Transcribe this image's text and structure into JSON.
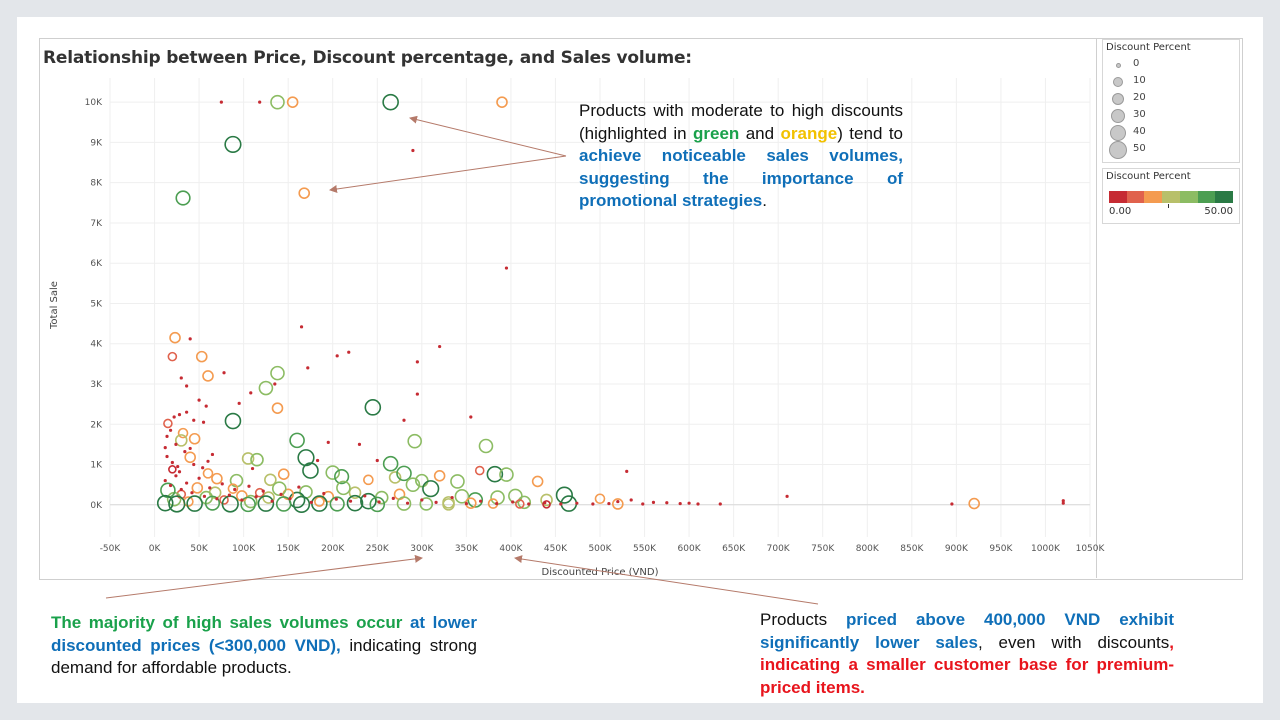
{
  "chart_title": "Relationship between Price, Discount percentage, and Sales volume:",
  "chart_data": {
    "type": "scatter",
    "title": "Relationship between Price, Discount percentage, and Sales volume:",
    "xlabel": "Discounted Price (VND)",
    "ylabel": "Total Sale",
    "xlim": [
      -50000,
      1050000
    ],
    "ylim": [
      -800,
      10600
    ],
    "x_ticks": [
      -50000,
      0,
      50000,
      100000,
      150000,
      200000,
      250000,
      300000,
      350000,
      400000,
      450000,
      500000,
      550000,
      600000,
      650000,
      700000,
      750000,
      800000,
      850000,
      900000,
      950000,
      1000000,
      1050000
    ],
    "x_tick_labels": [
      "-50K",
      "0K",
      "50K",
      "100K",
      "150K",
      "200K",
      "250K",
      "300K",
      "350K",
      "400K",
      "450K",
      "500K",
      "550K",
      "600K",
      "650K",
      "700K",
      "750K",
      "800K",
      "850K",
      "900K",
      "950K",
      "1000K",
      "1050K"
    ],
    "y_ticks": [
      0,
      1000,
      2000,
      3000,
      4000,
      5000,
      6000,
      7000,
      8000,
      9000,
      10000
    ],
    "y_tick_labels": [
      "0K",
      "1K",
      "2K",
      "3K",
      "4K",
      "5K",
      "6K",
      "7K",
      "8K",
      "9K",
      "10K"
    ],
    "size_field": "Discount Percent",
    "color_field": "Discount Percent",
    "points": [
      [
        75000,
        10000,
        0
      ],
      [
        118000,
        10000,
        2
      ],
      [
        155000,
        10000,
        20
      ],
      [
        138000,
        10000,
        35
      ],
      [
        265000,
        10000,
        45
      ],
      [
        390000,
        10000,
        20
      ],
      [
        88000,
        8950,
        48
      ],
      [
        32000,
        7620,
        38
      ],
      [
        168000,
        7740,
        20
      ],
      [
        290000,
        8800,
        2
      ],
      [
        395000,
        5880,
        2
      ],
      [
        23000,
        4150,
        20
      ],
      [
        40000,
        4120,
        2
      ],
      [
        20000,
        3680,
        10
      ],
      [
        53000,
        3680,
        20
      ],
      [
        60000,
        3200,
        20
      ],
      [
        78000,
        3280,
        2
      ],
      [
        138000,
        3270,
        35
      ],
      [
        125000,
        2900,
        35
      ],
      [
        165000,
        4420,
        2
      ],
      [
        205000,
        3700,
        2
      ],
      [
        218000,
        3790,
        2
      ],
      [
        295000,
        3550,
        2
      ],
      [
        320000,
        3930,
        2
      ],
      [
        295000,
        2750,
        2
      ],
      [
        30000,
        3150,
        2
      ],
      [
        95000,
        2520,
        2
      ],
      [
        108000,
        2780,
        2
      ],
      [
        245000,
        2420,
        45
      ],
      [
        138000,
        2400,
        20
      ],
      [
        88000,
        2080,
        45
      ],
      [
        15000,
        2020,
        10
      ],
      [
        45000,
        1640,
        20
      ],
      [
        32000,
        1780,
        15
      ],
      [
        30000,
        1600,
        25
      ],
      [
        12000,
        1420,
        2
      ],
      [
        160000,
        1600,
        40
      ],
      [
        170000,
        1170,
        48
      ],
      [
        292000,
        1580,
        35
      ],
      [
        372000,
        1460,
        35
      ],
      [
        355000,
        2180,
        2
      ],
      [
        40000,
        1180,
        20
      ],
      [
        105000,
        1150,
        25
      ],
      [
        115000,
        1120,
        30
      ],
      [
        183000,
        1100,
        2
      ],
      [
        265000,
        1020,
        40
      ],
      [
        20000,
        880,
        5
      ],
      [
        28000,
        820,
        2
      ],
      [
        60000,
        780,
        15
      ],
      [
        70000,
        650,
        20
      ],
      [
        92000,
        600,
        30
      ],
      [
        130000,
        620,
        25
      ],
      [
        145000,
        760,
        20
      ],
      [
        175000,
        850,
        45
      ],
      [
        200000,
        800,
        35
      ],
      [
        210000,
        700,
        38
      ],
      [
        240000,
        620,
        15
      ],
      [
        270000,
        680,
        25
      ],
      [
        280000,
        780,
        40
      ],
      [
        300000,
        600,
        30
      ],
      [
        320000,
        720,
        20
      ],
      [
        340000,
        580,
        35
      ],
      [
        365000,
        850,
        10
      ],
      [
        382000,
        760,
        45
      ],
      [
        395000,
        750,
        35
      ],
      [
        430000,
        580,
        20
      ],
      [
        405000,
        220,
        35
      ],
      [
        460000,
        240,
        48
      ],
      [
        500000,
        150,
        15
      ],
      [
        530000,
        830,
        2
      ],
      [
        560000,
        60,
        2
      ],
      [
        575000,
        50,
        2
      ],
      [
        590000,
        30,
        2
      ],
      [
        610000,
        20,
        2
      ],
      [
        635000,
        20,
        2
      ],
      [
        710000,
        210,
        2
      ],
      [
        895000,
        20,
        2
      ],
      [
        920000,
        30,
        20
      ],
      [
        1020000,
        100,
        2
      ],
      [
        1020000,
        40,
        2
      ],
      [
        520000,
        80,
        2
      ],
      [
        535000,
        120,
        2
      ],
      [
        548000,
        20,
        2
      ],
      [
        600000,
        40,
        2
      ],
      [
        520000,
        20,
        20
      ],
      [
        465000,
        30,
        45
      ],
      [
        440000,
        120,
        25
      ],
      [
        415000,
        60,
        30
      ],
      [
        385000,
        180,
        35
      ],
      [
        360000,
        120,
        40
      ],
      [
        345000,
        210,
        35
      ],
      [
        330000,
        60,
        25
      ],
      [
        310000,
        400,
        48
      ],
      [
        290000,
        500,
        35
      ],
      [
        275000,
        260,
        20
      ],
      [
        255000,
        180,
        30
      ],
      [
        240000,
        90,
        45
      ],
      [
        225000,
        300,
        25
      ],
      [
        212000,
        420,
        35
      ],
      [
        195000,
        200,
        20
      ],
      [
        185000,
        80,
        15
      ],
      [
        170000,
        320,
        30
      ],
      [
        160000,
        120,
        45
      ],
      [
        150000,
        260,
        20
      ],
      [
        140000,
        400,
        35
      ],
      [
        128000,
        180,
        25
      ],
      [
        118000,
        300,
        10
      ],
      [
        108000,
        80,
        30
      ],
      [
        98000,
        220,
        20
      ],
      [
        88000,
        400,
        15
      ],
      [
        78000,
        120,
        10
      ],
      [
        68000,
        300,
        25
      ],
      [
        58000,
        180,
        30
      ],
      [
        48000,
        420,
        20
      ],
      [
        38000,
        80,
        15
      ],
      [
        30000,
        260,
        10
      ],
      [
        22000,
        140,
        35
      ],
      [
        15000,
        360,
        40
      ],
      [
        12000,
        40,
        45
      ],
      [
        25000,
        20,
        48
      ],
      [
        45000,
        30,
        45
      ],
      [
        65000,
        40,
        38
      ],
      [
        85000,
        20,
        48
      ],
      [
        105000,
        10,
        40
      ],
      [
        125000,
        30,
        45
      ],
      [
        145000,
        20,
        40
      ],
      [
        165000,
        10,
        48
      ],
      [
        185000,
        30,
        45
      ],
      [
        205000,
        20,
        38
      ],
      [
        225000,
        40,
        45
      ],
      [
        250000,
        10,
        40
      ],
      [
        280000,
        30,
        35
      ],
      [
        305000,
        20,
        30
      ],
      [
        330000,
        10,
        25
      ],
      [
        355000,
        40,
        20
      ],
      [
        380000,
        30,
        15
      ],
      [
        410000,
        20,
        10
      ],
      [
        440000,
        10,
        5
      ],
      [
        12000,
        600,
        2
      ],
      [
        18000,
        480,
        2
      ],
      [
        24000,
        720,
        2
      ],
      [
        30000,
        380,
        2
      ],
      [
        36000,
        540,
        2
      ],
      [
        42000,
        300,
        2
      ],
      [
        50000,
        660,
        2
      ],
      [
        56000,
        210,
        2
      ],
      [
        62000,
        420,
        2
      ],
      [
        70000,
        150,
        2
      ],
      [
        76000,
        520,
        2
      ],
      [
        84000,
        240,
        2
      ],
      [
        90000,
        380,
        2
      ],
      [
        98000,
        120,
        2
      ],
      [
        106000,
        460,
        2
      ],
      [
        114000,
        200,
        2
      ],
      [
        122000,
        340,
        2
      ],
      [
        132000,
        90,
        2
      ],
      [
        142000,
        260,
        2
      ],
      [
        152000,
        150,
        2
      ],
      [
        162000,
        440,
        2
      ],
      [
        176000,
        60,
        2
      ],
      [
        190000,
        280,
        2
      ],
      [
        204000,
        140,
        2
      ],
      [
        220000,
        90,
        2
      ],
      [
        236000,
        220,
        2
      ],
      [
        252000,
        70,
        2
      ],
      [
        268000,
        160,
        2
      ],
      [
        284000,
        40,
        2
      ],
      [
        300000,
        120,
        2
      ],
      [
        316000,
        60,
        2
      ],
      [
        334000,
        180,
        2
      ],
      [
        350000,
        30,
        2
      ],
      [
        366000,
        90,
        2
      ],
      [
        384000,
        30,
        2
      ],
      [
        402000,
        70,
        2
      ],
      [
        420000,
        20,
        2
      ],
      [
        438000,
        50,
        2
      ],
      [
        456000,
        20,
        2
      ],
      [
        474000,
        40,
        2
      ],
      [
        492000,
        20,
        2
      ],
      [
        510000,
        30,
        2
      ],
      [
        14000,
        1200,
        2
      ],
      [
        20000,
        1050,
        2
      ],
      [
        26000,
        950,
        2
      ],
      [
        34000,
        1320,
        2
      ],
      [
        44000,
        1000,
        2
      ],
      [
        54000,
        920,
        2
      ],
      [
        22000,
        2180,
        2
      ],
      [
        28000,
        2240,
        2
      ],
      [
        36000,
        2300,
        2
      ],
      [
        44000,
        2100,
        2
      ],
      [
        55000,
        2050,
        2
      ],
      [
        58000,
        2450,
        2
      ],
      [
        50000,
        2600,
        2
      ],
      [
        36000,
        2950,
        2
      ],
      [
        40000,
        1400,
        2
      ],
      [
        65000,
        1250,
        2
      ],
      [
        14000,
        1700,
        2
      ],
      [
        18000,
        1850,
        2
      ],
      [
        24000,
        1500,
        2
      ],
      [
        135000,
        3000,
        2
      ],
      [
        172000,
        3400,
        2
      ],
      [
        280000,
        2100,
        2
      ],
      [
        250000,
        1100,
        2
      ],
      [
        230000,
        1500,
        2
      ],
      [
        195000,
        1550,
        2
      ],
      [
        110000,
        900,
        2
      ],
      [
        60000,
        1080,
        2
      ]
    ],
    "colors": [
      "#c62b33",
      "#e0624d",
      "#f49b50",
      "#b8c06a",
      "#8cbc63",
      "#4c9e52",
      "#2a7a45"
    ]
  },
  "size_legend": {
    "title": "Discount Percent",
    "entries": [
      "0",
      "10",
      "20",
      "30",
      "40",
      "50"
    ]
  },
  "color_legend": {
    "title": "Discount Percent",
    "min_label": "0.00",
    "max_label": "50.00",
    "colors": [
      "#c62b33",
      "#e0624d",
      "#f49b50",
      "#b8c06a",
      "#8cbc63",
      "#4c9e52",
      "#2a7a45"
    ]
  },
  "annotations": {
    "top": {
      "p1": "Products with moderate to high discounts (",
      "p2": "highlighted in ",
      "green": "green",
      "p3": " and ",
      "orange": "orange",
      "p4": ") tend to ",
      "blue": "achieve noticeable sales volumes, suggesting the importance of promotional strategies",
      "p5": "."
    },
    "left": {
      "green": "The majority of high sales volumes occur",
      "blue1": " at lower discounted prices (<300,000 VND),",
      "rest": " indicating strong demand for affordable products."
    },
    "right": {
      "p1": "Products ",
      "blue": "priced above 400,000 VND exhibit significantly lower sales",
      "p2": ", even with discounts",
      "red1": ",",
      "red2": " indicating a smaller customer base for premium-priced items."
    }
  }
}
